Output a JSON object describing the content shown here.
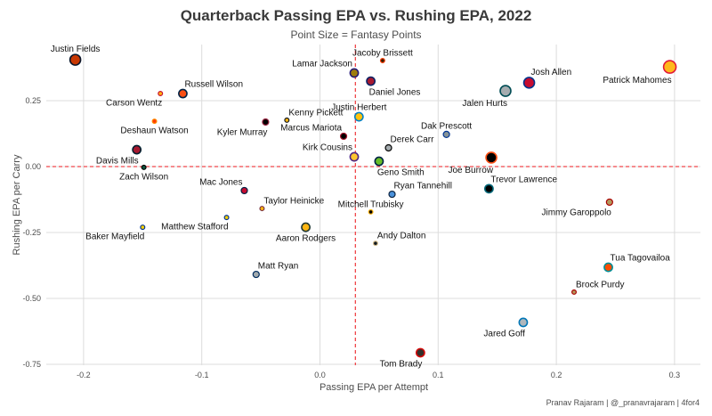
{
  "chart_data": {
    "type": "scatter",
    "title": "Quarterback Passing EPA vs. Rushing EPA, 2022",
    "subtitle": "Point Size = Fantasy Points",
    "xlabel": "Passing EPA per Attempt",
    "ylabel": "Rushing EPA per Carry",
    "caption": "Pranav Rajaram | @_pranavrajaram | 4for4",
    "xlim": [
      -0.23,
      0.32
    ],
    "ylim": [
      -0.77,
      0.46
    ],
    "x_ticks": [
      -0.2,
      -0.1,
      0.0,
      0.1,
      0.2,
      0.3
    ],
    "x_tick_labels": [
      "-0.2",
      "-0.1",
      "0.0",
      "0.1",
      "0.2",
      "0.3"
    ],
    "y_ticks": [
      0.25,
      0.0,
      -0.25,
      -0.5,
      -0.75
    ],
    "y_tick_labels": [
      "0.25",
      "0.00",
      "-0.25",
      "-0.50",
      "-0.75"
    ],
    "grid": true,
    "reference_lines": {
      "x_mean": 0.03,
      "y_mean": 0.0,
      "color": "#f0474b",
      "style": "dashed"
    },
    "points": [
      {
        "name": "Justin Fields",
        "x": -0.207,
        "y": 0.405,
        "size": "large",
        "fill": "#c83803",
        "stroke": "#0b162a",
        "label_pos": "above"
      },
      {
        "name": "Carson Wentz",
        "x": -0.135,
        "y": 0.277,
        "size": "tiny",
        "fill": "#ffb612",
        "stroke": "#c8102e",
        "label_pos": "below-left"
      },
      {
        "name": "Russell Wilson",
        "x": -0.116,
        "y": 0.277,
        "size": "medium",
        "fill": "#fb4f14",
        "stroke": "#002244",
        "label_pos": "above-right"
      },
      {
        "name": "Deshaun Watson",
        "x": -0.14,
        "y": 0.172,
        "size": "tiny",
        "fill": "#ff3c00",
        "stroke": "#ff8c00",
        "label_pos": "below"
      },
      {
        "name": "Davis Mills",
        "x": -0.155,
        "y": 0.064,
        "size": "medium",
        "fill": "#a71930",
        "stroke": "#03202f",
        "label_pos": "below-left"
      },
      {
        "name": "Zach Wilson",
        "x": -0.149,
        "y": -0.003,
        "size": "tiny",
        "fill": "#125740",
        "stroke": "#000000",
        "label_pos": "below"
      },
      {
        "name": "Mac Jones",
        "x": -0.064,
        "y": -0.091,
        "size": "small",
        "fill": "#c60c30",
        "stroke": "#002244",
        "label_pos": "above-left"
      },
      {
        "name": "Taylor Heinicke",
        "x": -0.049,
        "y": -0.159,
        "size": "tiny",
        "fill": "#ffb612",
        "stroke": "#773141",
        "label_pos": "above-right"
      },
      {
        "name": "Matthew Stafford",
        "x": -0.079,
        "y": -0.193,
        "size": "tiny",
        "fill": "#ffd100",
        "stroke": "#003594",
        "label_pos": "below-left"
      },
      {
        "name": "Baker Mayfield",
        "x": -0.15,
        "y": -0.23,
        "size": "tiny",
        "fill": "#ffd100",
        "stroke": "#003594",
        "label_pos": "below-left"
      },
      {
        "name": "Aaron Rodgers",
        "x": -0.012,
        "y": -0.23,
        "size": "medium",
        "fill": "#ffb612",
        "stroke": "#203731",
        "label_pos": "below"
      },
      {
        "name": "Matt Ryan",
        "x": -0.054,
        "y": -0.409,
        "size": "small",
        "fill": "#a2aaad",
        "stroke": "#002c5f",
        "label_pos": "above-right"
      },
      {
        "name": "Kyler Murray",
        "x": -0.046,
        "y": 0.169,
        "size": "small",
        "fill": "#000000",
        "stroke": "#97233f",
        "label_pos": "below-left"
      },
      {
        "name": "Kenny Pickett",
        "x": -0.028,
        "y": 0.176,
        "size": "tiny",
        "fill": "#ffb612",
        "stroke": "#101820",
        "label_pos": "above-right"
      },
      {
        "name": "Marcus Mariota",
        "x": 0.02,
        "y": 0.115,
        "size": "small",
        "fill": "#000000",
        "stroke": "#a71930",
        "label_pos": "above-left"
      },
      {
        "name": "Kirk Cousins",
        "x": 0.029,
        "y": 0.037,
        "size": "medium",
        "fill": "#ffc62f",
        "stroke": "#4f2683",
        "label_pos": "above-left"
      },
      {
        "name": "Justin Herbert",
        "x": 0.033,
        "y": 0.189,
        "size": "medium",
        "fill": "#ffc20e",
        "stroke": "#0080c6",
        "label_pos": "above"
      },
      {
        "name": "Lamar Jackson",
        "x": 0.029,
        "y": 0.355,
        "size": "medium",
        "fill": "#9e7c0c",
        "stroke": "#241773",
        "label_pos": "above-left"
      },
      {
        "name": "Jacoby Brissett",
        "x": 0.053,
        "y": 0.402,
        "size": "tiny",
        "fill": "#311d00",
        "stroke": "#ff3c00",
        "label_pos": "above"
      },
      {
        "name": "Daniel Jones",
        "x": 0.043,
        "y": 0.324,
        "size": "medium",
        "fill": "#a71930",
        "stroke": "#0b2265",
        "label_pos": "below-right"
      },
      {
        "name": "Derek Carr",
        "x": 0.058,
        "y": 0.071,
        "size": "small",
        "fill": "#a5acaf",
        "stroke": "#000000",
        "label_pos": "above-right"
      },
      {
        "name": "Geno Smith",
        "x": 0.05,
        "y": 0.02,
        "size": "medium",
        "fill": "#69be28",
        "stroke": "#002244",
        "label_pos": "below-right"
      },
      {
        "name": "Ryan Tannehill",
        "x": 0.061,
        "y": -0.105,
        "size": "small",
        "fill": "#4b92db",
        "stroke": "#0c2340",
        "label_pos": "above-right"
      },
      {
        "name": "Mitchell Trubisky",
        "x": 0.043,
        "y": -0.172,
        "size": "tiny",
        "fill": "#000000",
        "stroke": "#ffb612",
        "label_pos": "above"
      },
      {
        "name": "Andy Dalton",
        "x": 0.047,
        "y": -0.291,
        "size": "tiny",
        "fill": "#101820",
        "stroke": "#d3bc8d",
        "label_pos": "above-right"
      },
      {
        "name": "Tom Brady",
        "x": 0.085,
        "y": -0.706,
        "size": "medium",
        "fill": "#322f2b",
        "stroke": "#d50a0a",
        "label_pos": "below-left"
      },
      {
        "name": "Dak Prescott",
        "x": 0.107,
        "y": 0.122,
        "size": "small",
        "fill": "#869397",
        "stroke": "#003594",
        "label_pos": "above"
      },
      {
        "name": "Jalen Hurts",
        "x": 0.157,
        "y": 0.287,
        "size": "large",
        "fill": "#a5acaf",
        "stroke": "#004c54",
        "label_pos": "below-left"
      },
      {
        "name": "Josh Allen",
        "x": 0.177,
        "y": 0.318,
        "size": "large",
        "fill": "#c60c30",
        "stroke": "#00338d",
        "label_pos": "above-right"
      },
      {
        "name": "Joe Burrow",
        "x": 0.145,
        "y": 0.034,
        "size": "large",
        "fill": "#000000",
        "stroke": "#fb4f14",
        "label_pos": "below-left"
      },
      {
        "name": "Trevor Lawrence",
        "x": 0.143,
        "y": -0.084,
        "size": "medium",
        "fill": "#000000",
        "stroke": "#006778",
        "label_pos": "above-right"
      },
      {
        "name": "Jimmy Garoppolo",
        "x": 0.245,
        "y": -0.135,
        "size": "small",
        "fill": "#b3995d",
        "stroke": "#aa0000",
        "label_pos": "below-left"
      },
      {
        "name": "Tua Tagovailoa",
        "x": 0.244,
        "y": -0.382,
        "size": "medium",
        "fill": "#fc4c02",
        "stroke": "#008e97",
        "label_pos": "above-right"
      },
      {
        "name": "Brock Purdy",
        "x": 0.215,
        "y": -0.476,
        "size": "tiny",
        "fill": "#b3995d",
        "stroke": "#aa0000",
        "label_pos": "above-right"
      },
      {
        "name": "Jared Goff",
        "x": 0.172,
        "y": -0.591,
        "size": "medium",
        "fill": "#b0b7bc",
        "stroke": "#0076b6",
        "label_pos": "below-left"
      },
      {
        "name": "Patrick Mahomes",
        "x": 0.296,
        "y": 0.378,
        "size": "xlarge",
        "fill": "#ffb81c",
        "stroke": "#e31837",
        "label_pos": "below-left"
      }
    ]
  }
}
